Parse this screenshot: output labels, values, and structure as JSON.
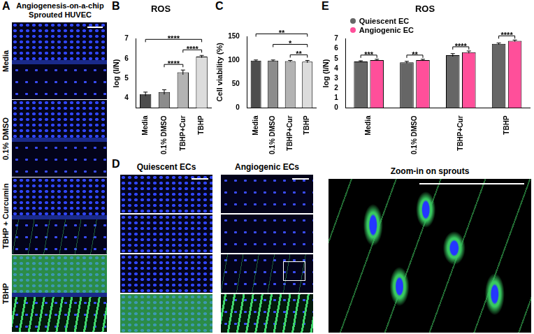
{
  "panel_a": {
    "label": "A",
    "title": [
      "Angiogenesis-on-a-chip",
      "Sprouted HUVEC"
    ],
    "rows": [
      "Media",
      "0.1% DMSO",
      "TBHP + Curcumin",
      "TBHP"
    ]
  },
  "panel_d": {
    "label": "D",
    "columns": [
      "Quiescent ECs",
      "Angiogenic ECs"
    ],
    "zoom_title": "Zoom-in on sprouts"
  },
  "chart_data": [
    {
      "label": "B",
      "type": "bar",
      "title": "ROS",
      "categories": [
        "Media",
        "0.1% DMSO",
        "TBHP+Cur",
        "TBHP"
      ],
      "values": [
        4.2,
        4.3,
        5.3,
        6.1
      ],
      "errors": [
        0.1,
        0.12,
        0.12,
        0.06
      ],
      "colors": [
        "#4d4d4d",
        "#8c8c8c",
        "#b3b3b3",
        "#dcdcdc"
      ],
      "y_label": "log (I/N)",
      "ylim": [
        3.5,
        7
      ],
      "yticks": [
        4,
        5,
        6,
        7
      ],
      "grid": false,
      "annotations": [
        {
          "from": "Media",
          "to": "TBHP",
          "text": "****"
        },
        {
          "from": "0.1% DMSO",
          "to": "TBHP+Cur",
          "text": "****"
        },
        {
          "from": "TBHP+Cur",
          "to": "TBHP",
          "text": "****"
        }
      ]
    },
    {
      "label": "C",
      "type": "bar",
      "categories": [
        "Media",
        "0.1% DMSO",
        "TBHP+Cur",
        "TBHP"
      ],
      "values": [
        99,
        99,
        98,
        97
      ],
      "errors": [
        1.5,
        1.5,
        1.5,
        2.5
      ],
      "colors": [
        "#4d4d4d",
        "#8c8c8c",
        "#b3b3b3",
        "#dcdcdc"
      ],
      "y_label": "Cell viability (%)",
      "ylim": [
        0,
        150
      ],
      "yticks": [
        0,
        50,
        100,
        150
      ],
      "grid": false,
      "annotations": [
        {
          "from": "Media",
          "to": "TBHP",
          "text": "**"
        },
        {
          "from": "0.1% DMSO",
          "to": "TBHP",
          "text": "*"
        },
        {
          "from": "TBHP+Cur",
          "to": "TBHP",
          "text": "**"
        }
      ]
    },
    {
      "label": "E",
      "type": "bar",
      "title": "ROS",
      "categories": [
        "Media",
        "0.1% DMSO",
        "TBHP+Cur",
        "TBHP"
      ],
      "series": [
        {
          "name": "Quiescent EC",
          "color": "#666666",
          "values": [
            4.7,
            4.62,
            5.35,
            6.5
          ],
          "errors": [
            0.08,
            0.1,
            0.15,
            0.08
          ]
        },
        {
          "name": "Angiogenic EC",
          "color": "#ff4f9a",
          "values": [
            4.85,
            4.85,
            5.65,
            6.8
          ],
          "errors": [
            0.08,
            0.08,
            0.12,
            0.08
          ]
        }
      ],
      "legend": "top-left",
      "y_label": "log (I/N)",
      "ylim": [
        0,
        7
      ],
      "yticks": [
        0,
        1,
        2,
        3,
        4,
        5,
        6,
        7
      ],
      "grid": false,
      "annotations": [
        {
          "category": "Media",
          "text": "***"
        },
        {
          "category": "0.1% DMSO",
          "text": "**"
        },
        {
          "category": "TBHP+Cur",
          "text": "****"
        },
        {
          "category": "TBHP",
          "text": "****"
        }
      ]
    }
  ]
}
